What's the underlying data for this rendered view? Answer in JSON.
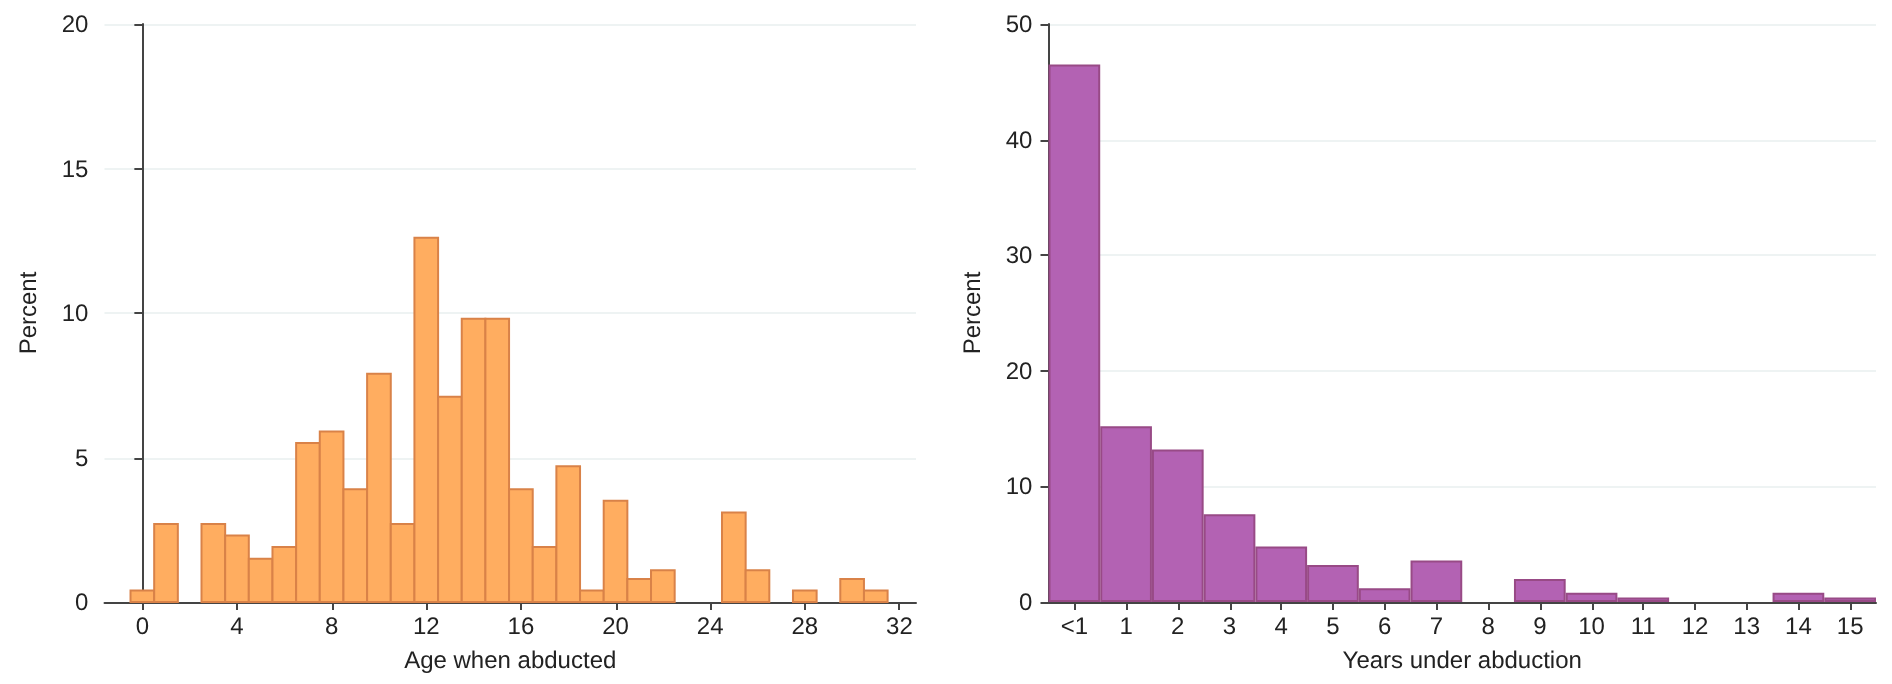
{
  "chart_data": [
    {
      "type": "histogram",
      "xlabel": "Age when abducted",
      "ylabel": "Percent",
      "color": "#ffad60",
      "bins": [
        -0.5,
        0.5,
        1.5,
        2.5,
        3.5,
        4.5,
        5.5,
        6.5,
        7.5,
        8.5,
        9.5,
        10.5,
        11.5,
        12.5,
        13.5,
        14.5,
        15.5,
        16.5,
        17.5,
        18.5,
        19.5,
        20.5,
        21.5,
        22.5,
        23.5,
        24.5,
        25.5,
        26.5,
        27.5,
        28.5,
        29.5,
        30.5,
        31.5
      ],
      "values": [
        0.4,
        2.7,
        0,
        2.7,
        2.3,
        1.5,
        1.9,
        5.5,
        5.9,
        3.9,
        7.9,
        2.7,
        12.6,
        7.1,
        9.8,
        9.8,
        3.9,
        1.9,
        4.7,
        0.4,
        3.5,
        0.8,
        1.1,
        0,
        0,
        3.1,
        1.1,
        0,
        0.4,
        0,
        0.8,
        0.4
      ],
      "xlim": [
        -1.6,
        32.7
      ],
      "xticks": [
        0,
        4,
        8,
        12,
        16,
        20,
        24,
        28,
        32
      ],
      "ylim": [
        0,
        20
      ],
      "yticks": [
        0,
        5,
        10,
        15,
        20
      ],
      "grid": "y"
    },
    {
      "type": "bar",
      "xlabel": "Years under abduction",
      "ylabel": "Percent",
      "color": "#b362b3",
      "categories": [
        "<1",
        "1",
        "2",
        "3",
        "4",
        "5",
        "6",
        "7",
        "8",
        "9",
        "10",
        "11",
        "12",
        "13",
        "14",
        "15"
      ],
      "values": [
        46.5,
        15.2,
        13.2,
        7.6,
        4.8,
        3.2,
        1.2,
        3.6,
        0,
        2.0,
        0.8,
        0.4,
        0,
        0,
        0.8,
        0.4
      ],
      "ylim": [
        0,
        50
      ],
      "yticks": [
        0,
        10,
        20,
        30,
        40,
        50
      ],
      "grid": "y"
    }
  ]
}
